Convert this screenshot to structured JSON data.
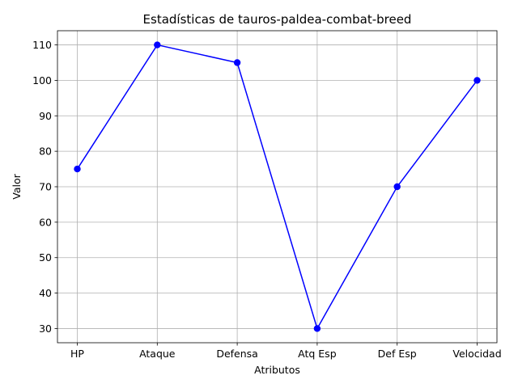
{
  "chart_data": {
    "type": "line",
    "title": "Estadísticas de tauros-paldea-combat-breed",
    "xlabel": "Atributos",
    "ylabel": "Valor",
    "categories": [
      "HP",
      "Ataque",
      "Defensa",
      "Atq Esp",
      "Def Esp",
      "Velocidad"
    ],
    "series": [
      {
        "values": [
          75,
          110,
          105,
          30,
          70,
          100
        ],
        "color": "#0000ff",
        "marker": "circle"
      }
    ],
    "ylim": [
      26,
      114
    ],
    "yticks": [
      30,
      40,
      50,
      60,
      70,
      80,
      90,
      100,
      110
    ],
    "grid": true
  }
}
